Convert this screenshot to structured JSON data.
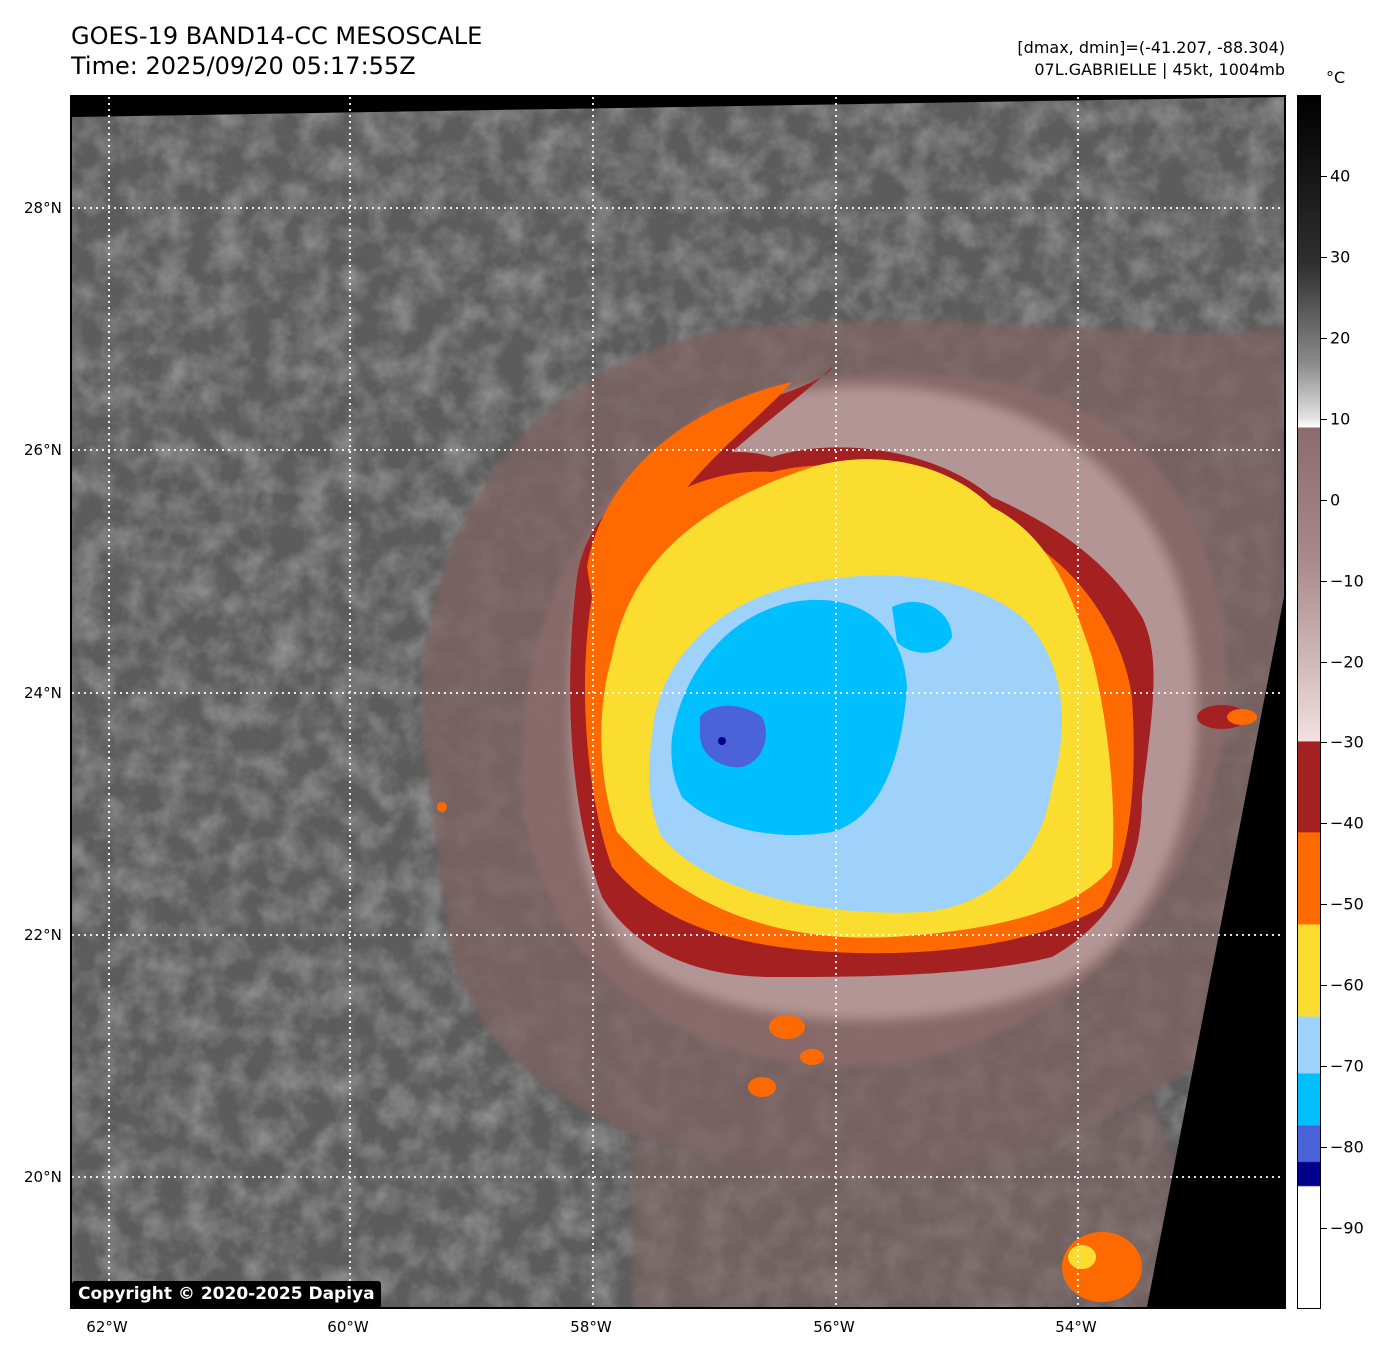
{
  "header": {
    "title_line1": "GOES-19 BAND14-CC MESOSCALE",
    "title_line2": "Time: 2025/09/20 05:17:55Z",
    "info_line1": "[dmax, dmin]=(-41.207, -88.304)",
    "info_line2": "07L.GABRIELLE | 45kt, 1004mb"
  },
  "map": {
    "lat_labels": [
      "28°N",
      "26°N",
      "24°N",
      "22°N",
      "20°N"
    ],
    "lat_values": [
      28,
      26,
      24,
      22,
      20
    ],
    "lon_labels": [
      "62°W",
      "60°W",
      "58°W",
      "56°W",
      "54°W"
    ],
    "lon_values": [
      -62,
      -60,
      -58,
      -56,
      -54
    ],
    "lon_range": [
      -62.3,
      -52.3
    ],
    "lat_range": [
      18.8,
      28.9
    ],
    "gridlines": true,
    "storm_center": {
      "lat": 23.6,
      "lon": -56.85
    },
    "colors": {
      "background_gray": "#5c5c5c",
      "cloud_gray": "#bdbdbd",
      "brown": "#8b6b6b",
      "pink": "#e8cfcf",
      "darkred": "#a52121",
      "orange": "#ff6a00",
      "yellow": "#fbdd30",
      "lightblue": "#9fd2fb",
      "blue": "#00bfff",
      "royalblue": "#4a63d8",
      "navy": "#00008b"
    }
  },
  "colorbar": {
    "unit": "°C",
    "tick_labels": [
      "40",
      "30",
      "20",
      "10",
      "0",
      "−10",
      "−20",
      "−30",
      "−40",
      "−50",
      "−60",
      "−70",
      "−80",
      "−90"
    ],
    "tick_values": [
      40,
      30,
      20,
      10,
      0,
      -10,
      -20,
      -30,
      -40,
      -50,
      -60,
      -70,
      -80,
      -90
    ],
    "range": [
      -100,
      50
    ]
  },
  "copyright": "Copyright © 2020-2025 Dapiya"
}
